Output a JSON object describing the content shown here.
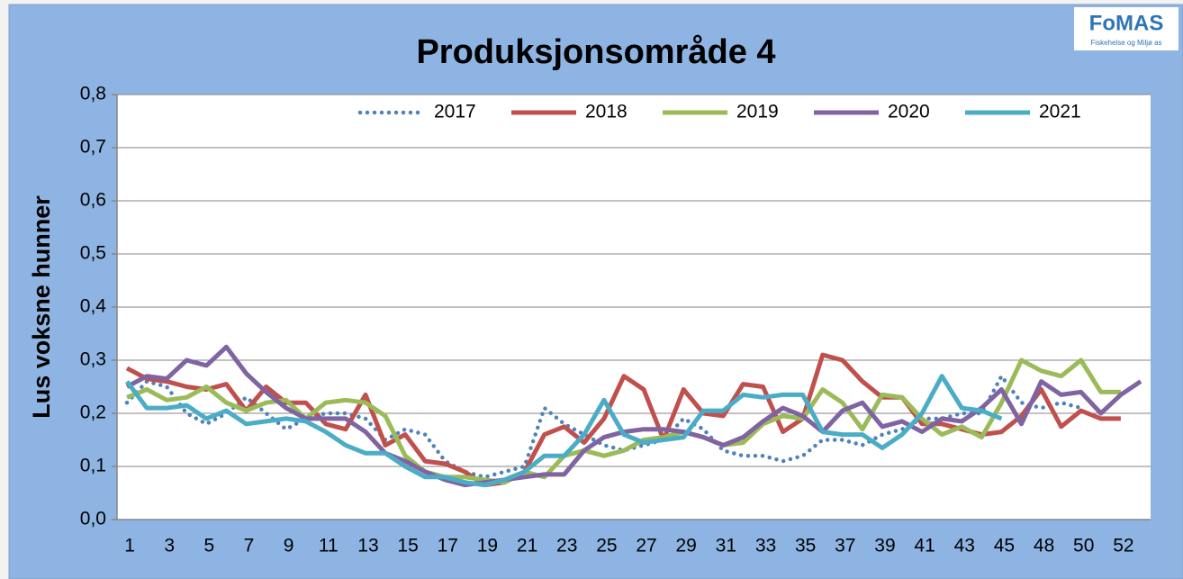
{
  "chart_data": {
    "type": "line",
    "title": "Produksjonsområde 4",
    "y_label": "Lus voksne hunner",
    "logo": {
      "name": "FoMAS",
      "tagline": "Fiskehelse og Miljø as"
    },
    "categories": [
      "1",
      "2",
      "3",
      "4",
      "5",
      "6",
      "7",
      "8",
      "9",
      "10",
      "11",
      "12",
      "13",
      "14",
      "15",
      "16",
      "17",
      "18",
      "19",
      "20",
      "21",
      "22",
      "23",
      "24",
      "25",
      "26",
      "27",
      "28",
      "29",
      "30",
      "31",
      "32",
      "33",
      "34",
      "35",
      "36",
      "37",
      "38",
      "39",
      "40",
      "41",
      "42",
      "43",
      "44",
      "45",
      "46",
      "48",
      "49",
      "50",
      "51",
      "52",
      "53"
    ],
    "ylim": [
      0,
      0.8
    ],
    "yticks": [
      {
        "value": 0,
        "label": "0,0"
      },
      {
        "value": 0.1,
        "label": "0,1"
      },
      {
        "value": 0.2,
        "label": "0,2"
      },
      {
        "value": 0.3,
        "label": "0,3"
      },
      {
        "value": 0.4,
        "label": "0,4"
      },
      {
        "value": 0.5,
        "label": "0,5"
      },
      {
        "value": 0.6,
        "label": "0,6"
      },
      {
        "value": 0.7,
        "label": "0,7"
      },
      {
        "value": 0.8,
        "label": "0,8"
      }
    ],
    "grid": true,
    "legend": "top",
    "series": [
      {
        "name": "2017",
        "color": "#4f81bd",
        "style": "dotted",
        "values": [
          0.22,
          0.26,
          0.25,
          0.2,
          0.18,
          0.2,
          0.23,
          0.2,
          0.17,
          0.19,
          0.2,
          0.2,
          0.19,
          0.15,
          0.17,
          0.16,
          0.11,
          0.09,
          0.08,
          0.09,
          0.1,
          0.21,
          0.18,
          0.16,
          0.14,
          0.13,
          0.14,
          0.15,
          0.19,
          0.17,
          0.13,
          0.12,
          0.12,
          0.11,
          0.12,
          0.15,
          0.15,
          0.14,
          0.16,
          0.17,
          0.19,
          0.19,
          0.2,
          0.2,
          0.27,
          0.22,
          0.21,
          0.22,
          0.21,
          null,
          null,
          null
        ]
      },
      {
        "name": "2018",
        "color": "#c0504d",
        "style": "solid",
        "values": [
          0.285,
          0.265,
          0.26,
          0.25,
          0.245,
          0.255,
          0.205,
          0.25,
          0.22,
          0.22,
          0.18,
          0.17,
          0.235,
          0.14,
          0.16,
          0.11,
          0.105,
          0.09,
          0.065,
          0.07,
          0.09,
          0.16,
          0.175,
          0.145,
          0.19,
          0.27,
          0.245,
          0.15,
          0.245,
          0.2,
          0.195,
          0.255,
          0.25,
          0.165,
          0.19,
          0.31,
          0.3,
          0.26,
          0.23,
          0.23,
          0.18,
          0.18,
          0.17,
          0.16,
          0.165,
          0.195,
          0.245,
          0.175,
          0.205,
          0.19,
          0.19,
          null
        ]
      },
      {
        "name": "2019",
        "color": "#9bbb59",
        "style": "solid",
        "values": [
          0.23,
          0.245,
          0.225,
          0.23,
          0.25,
          0.22,
          0.205,
          0.22,
          0.225,
          0.19,
          0.22,
          0.225,
          0.22,
          0.195,
          0.12,
          0.09,
          0.08,
          0.08,
          0.075,
          0.07,
          0.09,
          0.08,
          0.12,
          0.13,
          0.12,
          0.13,
          0.15,
          0.155,
          0.165,
          0.155,
          0.14,
          0.145,
          0.18,
          0.195,
          0.19,
          0.245,
          0.22,
          0.17,
          0.235,
          0.23,
          0.19,
          0.16,
          0.175,
          0.155,
          0.22,
          0.3,
          0.28,
          0.27,
          0.3,
          0.24,
          0.24,
          null
        ]
      },
      {
        "name": "2020",
        "color": "#8064a2",
        "style": "solid",
        "values": [
          0.25,
          0.27,
          0.265,
          0.3,
          0.29,
          0.325,
          0.275,
          0.24,
          0.21,
          0.19,
          0.19,
          0.19,
          0.165,
          0.125,
          0.11,
          0.09,
          0.075,
          0.065,
          0.07,
          0.075,
          0.08,
          0.085,
          0.085,
          0.13,
          0.155,
          0.165,
          0.17,
          0.17,
          0.165,
          0.155,
          0.14,
          0.155,
          0.185,
          0.21,
          0.195,
          0.165,
          0.205,
          0.22,
          0.175,
          0.185,
          0.165,
          0.19,
          0.185,
          0.21,
          0.245,
          0.18,
          0.26,
          0.235,
          0.24,
          0.2,
          0.235,
          0.26
        ]
      },
      {
        "name": "2021",
        "color": "#4bacc6",
        "style": "solid",
        "values": [
          0.26,
          0.21,
          0.21,
          0.215,
          0.19,
          0.205,
          0.18,
          0.185,
          0.19,
          0.185,
          0.165,
          0.14,
          0.125,
          0.125,
          0.1,
          0.08,
          0.08,
          0.07,
          0.065,
          0.075,
          0.09,
          0.12,
          0.12,
          0.16,
          0.225,
          0.16,
          0.145,
          0.15,
          0.155,
          0.205,
          0.205,
          0.235,
          0.23,
          0.235,
          0.235,
          0.165,
          0.16,
          0.16,
          0.135,
          0.16,
          0.2,
          0.27,
          0.21,
          0.205,
          0.19,
          null,
          null,
          null,
          null,
          null,
          null,
          null
        ]
      }
    ]
  }
}
